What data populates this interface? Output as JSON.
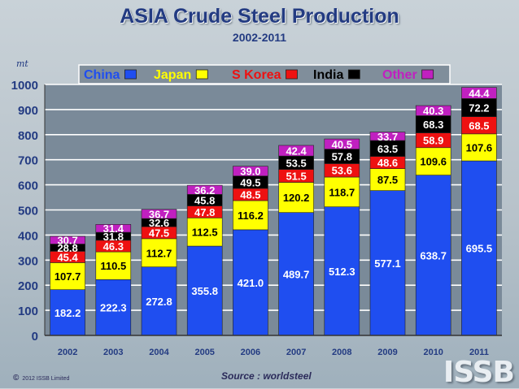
{
  "header": {
    "title": "ASIA Crude Steel Production",
    "subtitle": "2002-2011"
  },
  "footer": {
    "source": "Source : worldsteel",
    "copyright_symbol": "©",
    "copyright_text": "2012 ISSB Limited",
    "logo": "ISSB"
  },
  "chart_data": {
    "type": "bar",
    "stacked": true,
    "title": "ASIA Crude Steel Production",
    "subtitle": "2002-2011",
    "ylabel": "mt",
    "xlabel": "",
    "ylim": [
      0,
      1000
    ],
    "yticks": [
      0,
      100,
      200,
      300,
      400,
      500,
      600,
      700,
      800,
      900,
      1000
    ],
    "grid": true,
    "legend_position": "top",
    "categories": [
      "2002",
      "2003",
      "2004",
      "2005",
      "2006",
      "2007",
      "2008",
      "2009",
      "2010",
      "2011"
    ],
    "series": [
      {
        "name": "China",
        "color": "#1f4ef0",
        "label_color": "#ffffff",
        "values": [
          182.2,
          222.3,
          272.8,
          355.8,
          421.0,
          489.7,
          512.3,
          577.1,
          638.7,
          695.5
        ]
      },
      {
        "name": "Japan",
        "color": "#ffff00",
        "label_color": "#000000",
        "values": [
          107.7,
          110.5,
          112.7,
          112.5,
          116.2,
          120.2,
          118.7,
          87.5,
          109.6,
          107.6
        ]
      },
      {
        "name": "S Korea",
        "color": "#ee1111",
        "label_color": "#ffffff",
        "values": [
          45.4,
          46.3,
          47.5,
          47.8,
          48.5,
          51.5,
          53.6,
          48.6,
          58.9,
          68.5
        ]
      },
      {
        "name": "India",
        "color": "#000000",
        "label_color": "#ffffff",
        "values": [
          28.8,
          31.8,
          32.6,
          45.8,
          49.5,
          53.5,
          57.8,
          63.5,
          68.3,
          72.2
        ]
      },
      {
        "name": "Other",
        "color": "#c020c0",
        "label_color": "#ffffff",
        "values": [
          30.7,
          31.4,
          36.7,
          36.2,
          39.0,
          42.4,
          40.5,
          33.7,
          40.3,
          44.4
        ]
      }
    ],
    "legend_text_colors": {
      "China": "#1f4ef0",
      "Japan": "#ffff00",
      "S Korea": "#ee1111",
      "India": "#000000",
      "Other": "#c020c0"
    }
  }
}
